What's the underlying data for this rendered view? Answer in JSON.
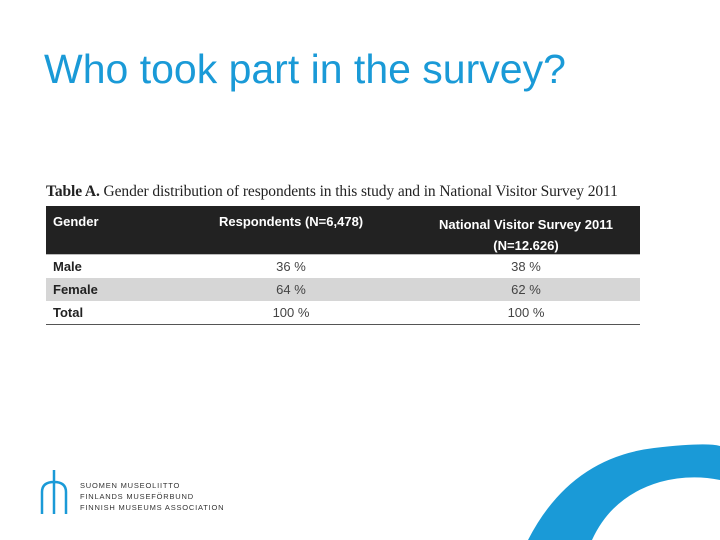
{
  "slide": {
    "title": "Who took part in the survey?"
  },
  "table": {
    "caption_label": "Table A.",
    "caption_text": " Gender distribution of respondents in this study and in National Visitor Survey 2011",
    "headers": [
      "Gender",
      "Respondents (N=6,478)",
      "National Visitor Survey 2011 (N=12.626)"
    ],
    "rows": [
      {
        "gender": "Male",
        "respondents": "36 %",
        "national": "38 %"
      },
      {
        "gender": "Female",
        "respondents": "64 %",
        "national": "62 %"
      },
      {
        "gender": "Total",
        "respondents": "100 %",
        "national": "100 %"
      }
    ]
  },
  "logo": {
    "lines": [
      "SUOMEN MUSEOLIITTO",
      "FINLANDS MUSEFÖRBUND",
      "FINNISH MUSEUMS ASSOCIATION"
    ],
    "color": "#1a9ad7"
  },
  "colors": {
    "accent": "#1a9ad7",
    "table_header": "#222222",
    "row_alt": "#d6d6d6"
  }
}
